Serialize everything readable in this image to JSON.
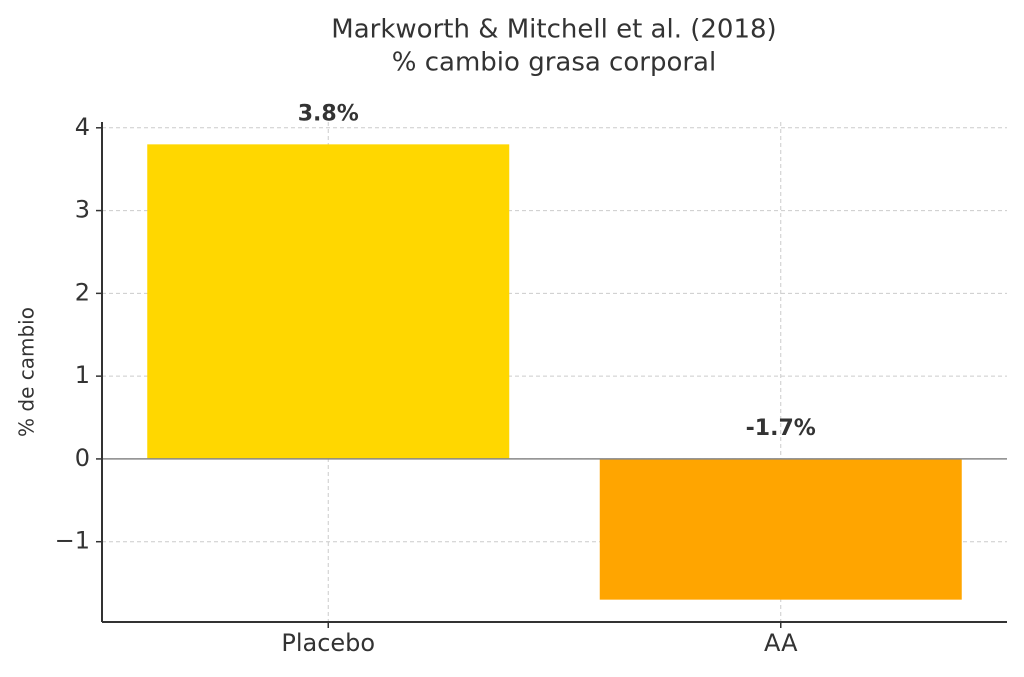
{
  "chart_data": {
    "type": "bar",
    "title": "Markworth & Mitchell et al. (2018)",
    "subtitle": "% cambio grasa corporal",
    "y_label": "% de cambio",
    "categories": [
      "Placebo",
      "AA"
    ],
    "values": [
      3.8,
      -1.7
    ],
    "value_labels": [
      "3.8%",
      "-1.7%"
    ],
    "colors": [
      "#FFD700",
      "#FFA500"
    ],
    "ylim": [
      -1.97,
      4.07
    ],
    "yticks": [
      {
        "value": -1,
        "label": "−1"
      },
      0,
      1,
      2,
      3,
      4
    ],
    "grid": true
  }
}
